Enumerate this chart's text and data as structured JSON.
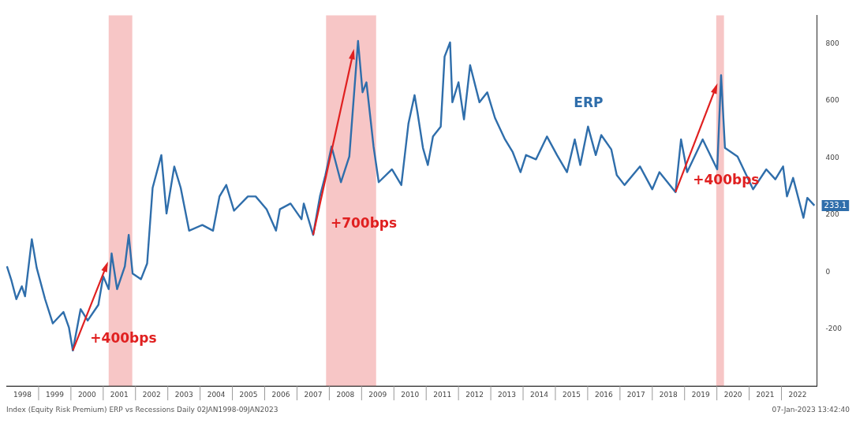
{
  "chart_data": {
    "type": "line",
    "xlim": [
      1998,
      2023.1
    ],
    "xticks": [
      {
        "value": 1998.5,
        "label": "1998"
      },
      {
        "value": 1999.5,
        "label": "1999"
      },
      {
        "value": 2000.5,
        "label": "2000"
      },
      {
        "value": 2001.5,
        "label": "2001"
      },
      {
        "value": 2002.5,
        "label": "2002"
      },
      {
        "value": 2003.5,
        "label": "2003"
      },
      {
        "value": 2004.5,
        "label": "2004"
      },
      {
        "value": 2005.5,
        "label": "2005"
      },
      {
        "value": 2006.5,
        "label": "2006"
      },
      {
        "value": 2007.5,
        "label": "2007"
      },
      {
        "value": 2008.5,
        "label": "2008"
      },
      {
        "value": 2009.5,
        "label": "2009"
      },
      {
        "value": 2010.5,
        "label": "2010"
      },
      {
        "value": 2011.5,
        "label": "2011"
      },
      {
        "value": 2012.5,
        "label": "2012"
      },
      {
        "value": 2013.5,
        "label": "2013"
      },
      {
        "value": 2014.5,
        "label": "2014"
      },
      {
        "value": 2015.5,
        "label": "2015"
      },
      {
        "value": 2016.5,
        "label": "2016"
      },
      {
        "value": 2017.5,
        "label": "2017"
      },
      {
        "value": 2018.5,
        "label": "2018"
      },
      {
        "value": 2019.5,
        "label": "2019"
      },
      {
        "value": 2020.5,
        "label": "2020"
      },
      {
        "value": 2021.5,
        "label": "2021"
      },
      {
        "value": 2022.5,
        "label": "2022"
      }
    ],
    "ylim": [
      -400,
      900
    ],
    "yticks": [
      -200,
      0,
      200,
      400,
      600,
      800
    ],
    "grid": false,
    "legend": false,
    "series": [
      {
        "name": "ERP",
        "color": "#2f6eab",
        "x": [
          1998.02,
          1998.16,
          1998.31,
          1998.48,
          1998.58,
          1998.79,
          1998.94,
          1999.2,
          1999.44,
          1999.77,
          1999.94,
          2000.06,
          2000.3,
          2000.52,
          2000.85,
          2001.0,
          2001.17,
          2001.26,
          2001.43,
          2001.67,
          2001.79,
          2001.91,
          2002.17,
          2002.36,
          2002.53,
          2002.8,
          2002.96,
          2003.2,
          2003.4,
          2003.66,
          2004.07,
          2004.4,
          2004.6,
          2004.81,
          2005.05,
          2005.48,
          2005.72,
          2006.06,
          2006.35,
          2006.47,
          2006.8,
          2007.14,
          2007.21,
          2007.5,
          2007.71,
          2007.88,
          2008.07,
          2008.36,
          2008.62,
          2008.79,
          2008.89,
          2009.03,
          2009.15,
          2009.37,
          2009.53,
          2009.94,
          2010.23,
          2010.45,
          2010.64,
          2010.73,
          2010.9,
          2011.05,
          2011.21,
          2011.45,
          2011.57,
          2011.74,
          2011.81,
          2012.0,
          2012.17,
          2012.36,
          2012.65,
          2012.89,
          2013.13,
          2013.44,
          2013.68,
          2013.92,
          2014.09,
          2014.4,
          2014.74,
          2015.05,
          2015.36,
          2015.6,
          2015.77,
          2016.01,
          2016.25,
          2016.42,
          2016.73,
          2016.9,
          2017.14,
          2017.62,
          2018.0,
          2018.22,
          2018.72,
          2018.89,
          2019.08,
          2019.56,
          2020.01,
          2020.13,
          2020.25,
          2020.64,
          2021.12,
          2021.53,
          2021.81,
          2022.05,
          2022.17,
          2022.36,
          2022.68,
          2022.8,
          2023.02
        ],
        "values": [
          20,
          -30,
          -95,
          -50,
          -85,
          115,
          15,
          -95,
          -180,
          -140,
          -195,
          -275,
          -130,
          -170,
          -115,
          -15,
          -60,
          65,
          -60,
          20,
          130,
          -5,
          -25,
          30,
          295,
          410,
          205,
          370,
          295,
          145,
          165,
          145,
          265,
          305,
          215,
          265,
          265,
          220,
          145,
          220,
          240,
          185,
          240,
          130,
          265,
          340,
          440,
          315,
          405,
          660,
          810,
          630,
          665,
          440,
          315,
          360,
          305,
          520,
          620,
          560,
          435,
          375,
          475,
          510,
          755,
          805,
          595,
          665,
          535,
          725,
          595,
          630,
          540,
          465,
          420,
          350,
          410,
          395,
          475,
          410,
          350,
          465,
          375,
          510,
          410,
          480,
          430,
          340,
          305,
          370,
          290,
          350,
          280,
          465,
          350,
          465,
          360,
          690,
          435,
          405,
          290,
          360,
          325,
          370,
          265,
          330,
          190,
          260,
          233.1
        ],
        "value_labels": [
          null,
          null,
          null,
          null,
          null,
          null,
          null,
          null,
          null,
          null,
          null,
          null,
          null,
          null,
          null,
          null,
          null,
          null,
          null,
          null,
          null,
          null,
          null,
          null,
          null,
          null,
          null,
          null,
          null,
          null,
          null,
          null,
          null,
          null,
          null,
          null,
          null,
          null,
          null,
          null,
          null,
          null,
          null,
          null,
          null,
          null,
          null,
          null,
          null,
          null,
          null,
          null,
          null,
          null,
          null,
          null,
          null,
          null,
          null,
          null,
          null,
          null,
          null,
          null,
          null,
          null,
          null,
          null,
          null,
          null,
          null,
          null,
          null,
          null,
          null,
          null,
          null,
          null,
          null,
          null,
          null,
          null,
          null,
          null,
          null,
          null,
          null,
          null,
          null,
          null,
          null,
          null,
          null,
          null,
          null,
          null,
          null,
          null,
          null,
          null,
          null,
          null,
          null,
          null,
          null,
          null,
          null,
          null,
          "233.1"
        ]
      }
    ],
    "bands": [
      {
        "axis": "x",
        "from": 2001.17,
        "to": 2001.9,
        "color": "#f6bcbc"
      },
      {
        "axis": "x",
        "from": 2007.9,
        "to": 2009.45,
        "color": "#f6bcbc"
      },
      {
        "axis": "x",
        "from": 2019.98,
        "to": 2020.22,
        "color": "#f6bcbc"
      }
    ],
    "annotations": [
      {
        "text": "+400bps",
        "x": 2000.06,
        "y": -275
      },
      {
        "text": "+700bps",
        "x": 2007.5,
        "y": 130
      },
      {
        "text": "+400bps",
        "x": 2018.72,
        "y": 280
      },
      "Index (Equity Risk Premium) ERP vs Recessions Daily 02JAN1998-09JAN2023",
      "07-Jan-2023 13:42:40"
    ]
  }
}
